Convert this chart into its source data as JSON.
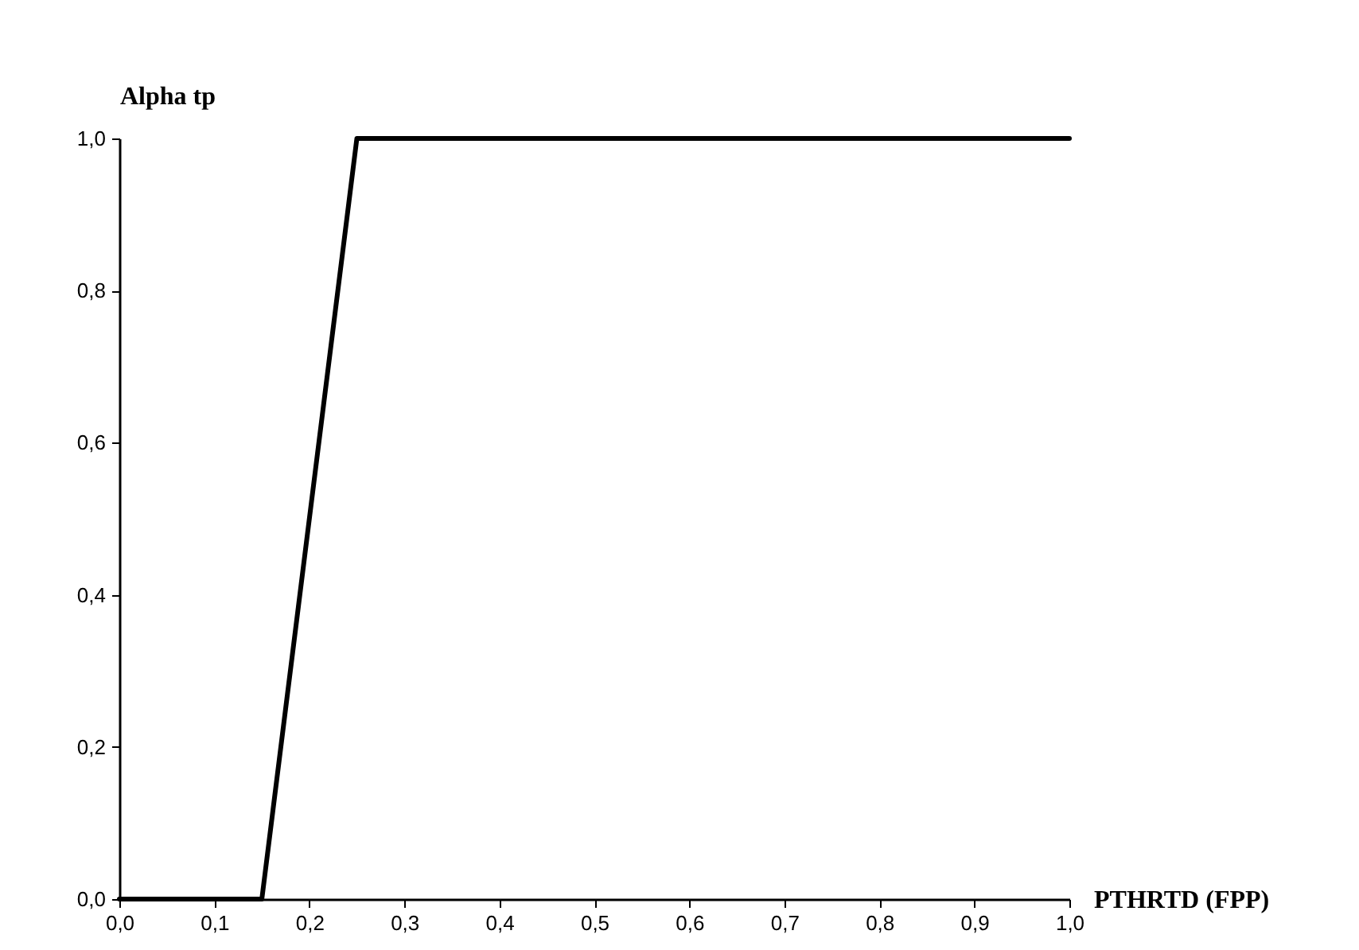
{
  "chart_data": {
    "type": "line",
    "xlabel": "PTHRTD (FPP)",
    "ylabel": "Alpha tp",
    "x": [
      0,
      0.15,
      0.25,
      1
    ],
    "series": [
      {
        "color": "#000000",
        "values": [
          0,
          0,
          1,
          1
        ]
      }
    ],
    "xlim": [
      0,
      1
    ],
    "ylim": [
      0,
      1
    ],
    "xticks": [
      {
        "value": 0,
        "label": "0,0"
      },
      {
        "value": 0.1,
        "label": "0,1"
      },
      {
        "value": 0.2,
        "label": "0,2"
      },
      {
        "value": 0.3,
        "label": "0,3"
      },
      {
        "value": 0.4,
        "label": "0,4"
      },
      {
        "value": 0.5,
        "label": "0,5"
      },
      {
        "value": 0.6,
        "label": "0,6"
      },
      {
        "value": 0.7,
        "label": "0,7"
      },
      {
        "value": 0.8,
        "label": "0,8"
      },
      {
        "value": 0.9,
        "label": "0,9"
      },
      {
        "value": 1,
        "label": "1,0"
      }
    ],
    "yticks": [
      {
        "value": 0,
        "label": "0,0"
      },
      {
        "value": 0.2,
        "label": "0,2"
      },
      {
        "value": 0.4,
        "label": "0,4"
      },
      {
        "value": 0.6,
        "label": "0,6"
      },
      {
        "value": 0.8,
        "label": "0,8"
      },
      {
        "value": 1,
        "label": "1,0"
      }
    ],
    "grid": false,
    "marker": "none",
    "line_style": "solid"
  }
}
